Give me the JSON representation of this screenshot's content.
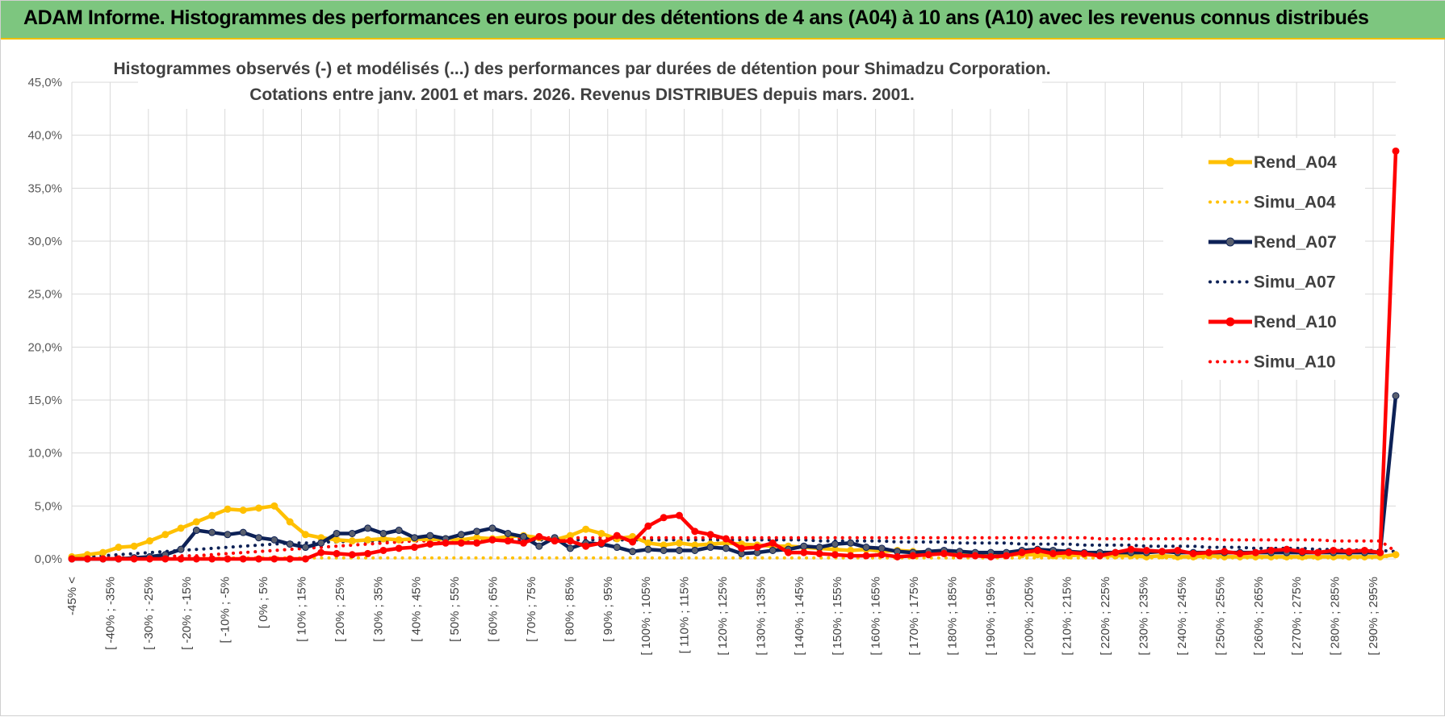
{
  "banner": {
    "title": "ADAM Informe. Histogrammes des performances en euros pour des détentions de 4 ans (A04) à 10 ans (A10) avec les revenus connus distribués"
  },
  "colors": {
    "banner_bg": "#7dc67f",
    "banner_border": "#f0c000",
    "A04": "#ffc000",
    "A07": "#0d2156",
    "A10": "#ff0000"
  },
  "chart_data": {
    "type": "line",
    "title_lines": [
      "Histogrammes observés (-) et modélisés (...) des performances par durées de détention pour Shimadzu Corporation.",
      "Cotations entre janv. 2001 et mars. 2026. Revenus DISTRIBUES depuis mars. 2001."
    ],
    "ylim": [
      0,
      45
    ],
    "ytick_labels": [
      "0,0%",
      "5,0%",
      "10,0%",
      "15,0%",
      "20,0%",
      "25,0%",
      "30,0%",
      "35,0%",
      "40,0%",
      "45,0%"
    ],
    "x_tick_labels": [
      "-45% <",
      "[ -40% ; -35%",
      "[ -30% ; -25%",
      "[ -20% ; -15%",
      "[ -10% ; -5%",
      "[ 0% ; 5%",
      "[ 10% ; 15%",
      "[ 20% ; 25%",
      "[ 30% ; 35%",
      "[ 40% ; 45%",
      "[ 50% ; 55%",
      "[ 60% ; 65%",
      "[ 70% ; 75%",
      "[ 80% ; 85%",
      "[ 90% ; 95%",
      "[ 100% ; 105%",
      "[ 110% ; 115%",
      "[ 120% ; 125%",
      "[ 130% ; 135%",
      "[ 140% ; 145%",
      "[ 150% ; 155%",
      "[ 160% ; 165%",
      "[ 170% ; 175%",
      "[ 180% ; 185%",
      "[ 190% ; 195%",
      "[ 200% ; 205%",
      "[ 210% ; 215%",
      "[ 220% ; 225%",
      "[ 230% ; 235%",
      "[ 240% ; 245%",
      "[ 250% ; 255%",
      "[ 260% ; 265%",
      "[ 270% ; 275%",
      "[ 280% ; 285%",
      "[ 290% ; 295%"
    ],
    "grid": true,
    "legend_position": "right",
    "series": [
      {
        "name": "Rend_A04",
        "style": "solid",
        "color": "#ffc000",
        "values": [
          0.2,
          0.4,
          0.6,
          1.1,
          1.2,
          1.7,
          2.3,
          2.9,
          3.5,
          4.1,
          4.7,
          4.6,
          4.8,
          5.0,
          3.5,
          2.3,
          2.0,
          1.8,
          1.7,
          1.8,
          1.9,
          1.8,
          1.9,
          1.8,
          1.9,
          1.8,
          2.0,
          1.9,
          2.1,
          2.2,
          2.0,
          1.8,
          2.2,
          2.8,
          2.4,
          1.9,
          2.1,
          1.5,
          1.3,
          1.5,
          1.3,
          1.4,
          1.5,
          1.4,
          1.3,
          1.2,
          1.2,
          1.1,
          1.0,
          0.9,
          0.8,
          0.9,
          0.7,
          0.8,
          0.7,
          0.6,
          0.6,
          0.5,
          0.5,
          0.5,
          0.4,
          0.4,
          0.4,
          0.3,
          0.3,
          0.4,
          0.3,
          0.3,
          0.3,
          0.2,
          0.3,
          0.2,
          0.2,
          0.3,
          0.2,
          0.2,
          0.2,
          0.2,
          0.2,
          0.2,
          0.2,
          0.2,
          0.2,
          0.2,
          0.2,
          0.4
        ]
      },
      {
        "name": "Simu_A04",
        "style": "dotted",
        "color": "#ffc000",
        "values": [
          0.1,
          0.1,
          0.1,
          0.1,
          0.1,
          0.1,
          0.1,
          0.1,
          0.1,
          0.1,
          0.1,
          0.1,
          0.1,
          0.1,
          0.1,
          0.1,
          0.1,
          0.1,
          0.1,
          0.1,
          0.1,
          0.1,
          0.1,
          0.1,
          0.1,
          0.1,
          0.1,
          0.1,
          0.1,
          0.1,
          0.1,
          0.1,
          0.1,
          0.1,
          0.1,
          0.1,
          0.1,
          0.1,
          0.1,
          0.1,
          0.1,
          0.1,
          0.1,
          0.1,
          0.1,
          0.1,
          0.1,
          0.1,
          0.1,
          0.1,
          0.1,
          0.1,
          0.1,
          0.1,
          0.1,
          0.1,
          0.1,
          0.1,
          0.1,
          0.1,
          0.1,
          0.1,
          0.1,
          0.1,
          0.1,
          0.1,
          0.1,
          0.1,
          0.1,
          0.1,
          0.1,
          0.1,
          0.1,
          0.1,
          0.1,
          0.1,
          0.1,
          0.1,
          0.1,
          0.1,
          0.1,
          0.1,
          0.1,
          0.1,
          0.1,
          0.4
        ]
      },
      {
        "name": "Rend_A07",
        "style": "solid",
        "color": "#0d2156",
        "values": [
          0.0,
          0.0,
          0.0,
          0.0,
          0.1,
          0.2,
          0.4,
          0.9,
          2.7,
          2.5,
          2.3,
          2.5,
          2.0,
          1.8,
          1.4,
          1.1,
          1.5,
          2.4,
          2.4,
          2.9,
          2.4,
          2.7,
          2.0,
          2.2,
          1.9,
          2.3,
          2.6,
          2.9,
          2.4,
          2.1,
          1.2,
          2.0,
          1.0,
          1.5,
          1.4,
          1.1,
          0.7,
          0.9,
          0.8,
          0.8,
          0.8,
          1.1,
          1.0,
          0.5,
          0.6,
          0.8,
          0.9,
          1.2,
          1.1,
          1.4,
          1.5,
          1.1,
          1.0,
          0.7,
          0.6,
          0.7,
          0.8,
          0.7,
          0.6,
          0.6,
          0.6,
          0.8,
          0.9,
          0.8,
          0.7,
          0.6,
          0.6,
          0.6,
          0.6,
          0.6,
          0.7,
          0.6,
          0.6,
          0.6,
          0.6,
          0.6,
          0.6,
          0.6,
          0.6,
          0.6,
          0.6,
          0.6,
          0.6,
          0.6,
          0.6,
          15.4
        ]
      },
      {
        "name": "Simu_A07",
        "style": "dotted",
        "color": "#0d2156",
        "values": [
          0.1,
          0.2,
          0.3,
          0.4,
          0.5,
          0.6,
          0.7,
          0.8,
          0.9,
          1.0,
          1.1,
          1.2,
          1.3,
          1.4,
          1.5,
          1.5,
          1.6,
          1.6,
          1.7,
          1.7,
          1.7,
          1.8,
          1.8,
          1.8,
          1.8,
          1.8,
          1.8,
          1.8,
          1.8,
          1.8,
          1.8,
          1.8,
          1.8,
          1.8,
          1.8,
          1.8,
          1.8,
          1.8,
          1.8,
          1.8,
          1.8,
          1.8,
          1.8,
          1.8,
          1.8,
          1.8,
          1.8,
          1.8,
          1.7,
          1.7,
          1.7,
          1.7,
          1.7,
          1.6,
          1.6,
          1.6,
          1.6,
          1.5,
          1.5,
          1.5,
          1.5,
          1.4,
          1.4,
          1.4,
          1.4,
          1.3,
          1.3,
          1.3,
          1.3,
          1.2,
          1.2,
          1.2,
          1.2,
          1.1,
          1.1,
          1.1,
          1.0,
          1.0,
          1.0,
          1.0,
          0.9,
          0.9,
          0.9,
          0.8,
          0.8,
          0.7
        ]
      },
      {
        "name": "Rend_A10",
        "style": "solid",
        "color": "#ff0000",
        "values": [
          0.0,
          0.0,
          0.0,
          0.0,
          0.0,
          0.0,
          0.0,
          0.0,
          0.0,
          0.0,
          0.0,
          0.0,
          0.0,
          0.0,
          0.0,
          0.0,
          0.6,
          0.5,
          0.4,
          0.5,
          0.8,
          1.0,
          1.1,
          1.4,
          1.5,
          1.5,
          1.5,
          1.8,
          1.7,
          1.5,
          2.1,
          1.7,
          1.7,
          1.2,
          1.5,
          2.2,
          1.6,
          3.1,
          3.9,
          4.1,
          2.6,
          2.3,
          1.9,
          1.0,
          1.1,
          1.5,
          0.6,
          0.6,
          0.5,
          0.4,
          0.3,
          0.3,
          0.4,
          0.2,
          0.3,
          0.4,
          0.5,
          0.3,
          0.3,
          0.2,
          0.3,
          0.6,
          0.8,
          0.5,
          0.6,
          0.5,
          0.3,
          0.6,
          0.9,
          0.8,
          0.7,
          0.8,
          0.5,
          0.6,
          0.7,
          0.5,
          0.6,
          0.8,
          0.9,
          0.7,
          0.6,
          0.8,
          0.7,
          0.8,
          0.6,
          38.5
        ]
      },
      {
        "name": "Simu_A10",
        "style": "dotted",
        "color": "#ff0000",
        "values": [
          0.0,
          0.0,
          0.1,
          0.1,
          0.1,
          0.2,
          0.2,
          0.3,
          0.3,
          0.4,
          0.5,
          0.6,
          0.7,
          0.8,
          0.9,
          1.0,
          1.1,
          1.2,
          1.3,
          1.4,
          1.5,
          1.6,
          1.7,
          1.7,
          1.8,
          1.8,
          1.9,
          1.9,
          1.9,
          2.0,
          2.0,
          2.0,
          2.0,
          2.0,
          2.0,
          2.0,
          2.0,
          2.0,
          2.0,
          2.0,
          2.0,
          2.0,
          2.0,
          2.0,
          2.0,
          2.0,
          2.0,
          2.0,
          2.0,
          2.0,
          2.0,
          2.0,
          2.0,
          2.0,
          2.0,
          2.0,
          2.0,
          2.0,
          2.0,
          2.0,
          2.0,
          2.0,
          2.0,
          2.0,
          2.0,
          2.0,
          1.9,
          1.9,
          1.9,
          1.9,
          1.9,
          1.9,
          1.9,
          1.9,
          1.8,
          1.8,
          1.8,
          1.8,
          1.8,
          1.8,
          1.8,
          1.7,
          1.7,
          1.7,
          1.7,
          0.7
        ]
      }
    ]
  }
}
